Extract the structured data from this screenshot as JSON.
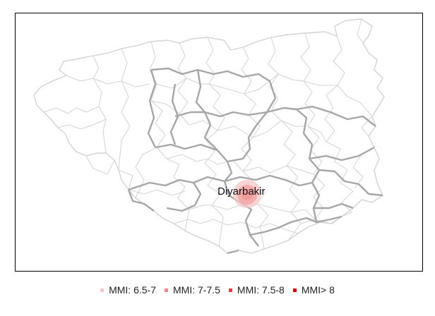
{
  "map": {
    "city_label": "Diyarbakir"
  },
  "legend": [
    {
      "label": "MMI: 6.5-7",
      "color": "#f5c6c6"
    },
    {
      "label": "MMI: 7-7.5",
      "color": "#f08a8a"
    },
    {
      "label": "MMI: 7.5-8",
      "color": "#e83a3a"
    },
    {
      "label": "MMI> 8",
      "color": "#cc0000"
    }
  ],
  "colors": {
    "province_border": "#a6a6a6",
    "district_border": "#d3d3d3",
    "intensity_fill": "#f08a8a"
  }
}
